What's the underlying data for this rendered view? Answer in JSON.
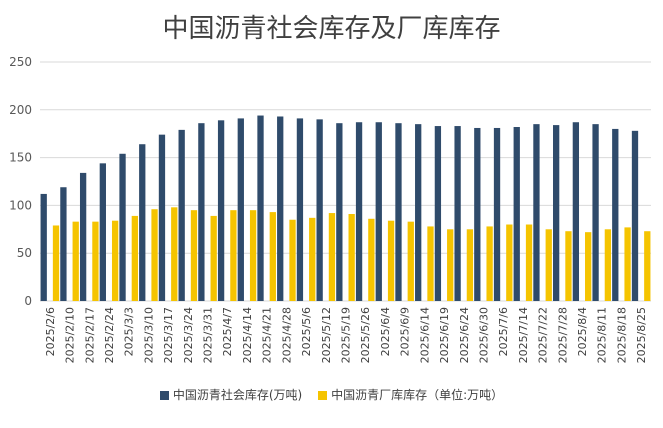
{
  "chart_data": {
    "type": "bar",
    "title": "中国沥青社会库存及厂库库存",
    "categories": [
      "2025/2/6",
      "2025/2/10",
      "2025/2/17",
      "2025/2/24",
      "2025/3/3",
      "2025/3/10",
      "2025/3/17",
      "2025/3/24",
      "2025/3/31",
      "2025/4/7",
      "2025/4/14",
      "2025/4/21",
      "2025/4/28",
      "2025/5/6",
      "2025/5/12",
      "2025/5/19",
      "2025/5/26",
      "2025/6/4",
      "2025/6/9",
      "2025/6/14",
      "2025/6/19",
      "2025/6/24",
      "2025/6/30",
      "2025/7/6",
      "2025/7/14",
      "2025/7/22",
      "2025/7/28",
      "2025/8/4",
      "2025/8/11",
      "2025/8/18",
      "2025/8/25"
    ],
    "series": [
      {
        "name": "中国沥青社会库存(万吨)",
        "color": "#2f4b6b",
        "values": [
          112,
          119,
          134,
          144,
          154,
          164,
          174,
          179,
          186,
          189,
          191,
          194,
          193,
          191,
          190,
          186,
          187,
          187,
          186,
          185,
          183,
          183,
          181,
          181,
          182,
          185,
          184,
          187,
          185,
          180,
          178
        ]
      },
      {
        "name": "中国沥青厂库库存（单位:万吨）",
        "color": "#f5c400",
        "values": [
          79,
          83,
          83,
          84,
          89,
          96,
          98,
          95,
          89,
          95,
          95,
          93,
          85,
          87,
          92,
          91,
          86,
          84,
          83,
          78,
          75,
          75,
          78,
          80,
          80,
          75,
          73,
          72,
          75,
          77,
          73
        ]
      }
    ],
    "ylim": [
      0,
      250
    ],
    "yticks": [
      0,
      50,
      100,
      150,
      200,
      250
    ],
    "grid": true,
    "legend_position": "bottom"
  }
}
